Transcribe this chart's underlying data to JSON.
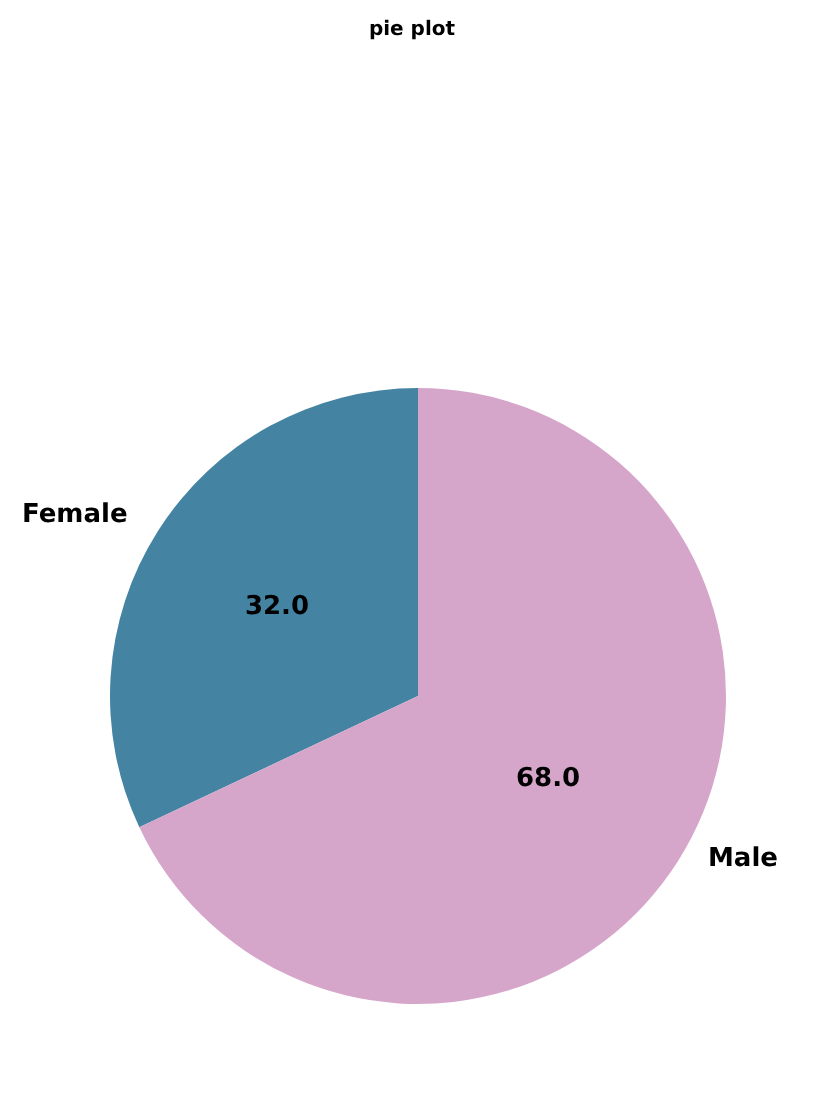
{
  "chart_data": {
    "type": "pie",
    "title": "pie plot",
    "categories": [
      "Female",
      "Male"
    ],
    "values": [
      32.0,
      68.0
    ],
    "colors": [
      "#4484a2",
      "#d6a6ca"
    ],
    "data_labels": true,
    "value_labels": [
      "32.0",
      "68.0"
    ]
  }
}
